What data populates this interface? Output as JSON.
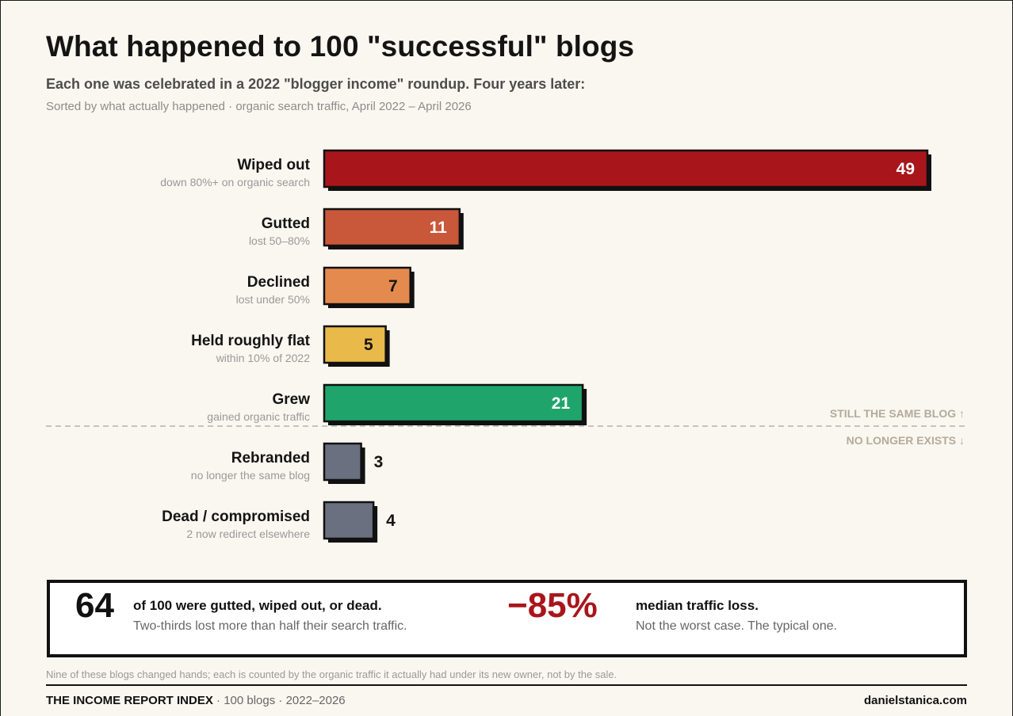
{
  "title": "What happened to 100 \"successful\" blogs",
  "subtitle": "Each one was celebrated in a 2022 \"blogger income\" roundup. Four years later:",
  "note": "Sorted by what actually happened · organic search traffic, April 2022 – April 2026",
  "chart_data": {
    "type": "bar",
    "orientation": "horizontal",
    "categories": [
      "Wiped out",
      "Gutted",
      "Declined",
      "Held roughly flat",
      "Grew",
      "Rebranded",
      "Dead / compromised"
    ],
    "descriptions": [
      "down 80%+ on organic search",
      "lost 50–80%",
      "lost under 50%",
      "within 10% of 2022",
      "gained organic traffic",
      "no longer the same blog",
      "2 now redirect elsewhere"
    ],
    "values": [
      49,
      11,
      7,
      5,
      21,
      3,
      4
    ],
    "colors": [
      "#a8161c",
      "#c9573a",
      "#e58a4e",
      "#e9b94a",
      "#1fa56b",
      "#6b7080",
      "#6b7080"
    ],
    "label_inside": [
      true,
      true,
      true,
      true,
      true,
      false,
      false
    ],
    "label_colors": [
      "#ffffff",
      "#ffffff",
      "#141414",
      "#141414",
      "#ffffff",
      "#141414",
      "#141414"
    ],
    "divider_above_label": "STILL THE SAME BLOG ↑",
    "divider_below_label": "NO LONGER EXISTS ↓",
    "divider_after_index": 4
  },
  "summary": {
    "count": "64",
    "count_headline": "of 100 were gutted, wiped out, or dead.",
    "count_sub": "Two-thirds lost more than half their search traffic.",
    "pct": "−85%",
    "pct_headline": "median traffic loss.",
    "pct_sub": "Not the worst case. The typical one."
  },
  "footnote": "Nine of these blogs changed hands; each is counted by the organic traffic it actually had under its new owner, not by the sale.",
  "footer": {
    "brand": "THE INCOME REPORT INDEX",
    "details": " · 100 blogs · 2022–2026",
    "site": "danielstanica.com"
  }
}
